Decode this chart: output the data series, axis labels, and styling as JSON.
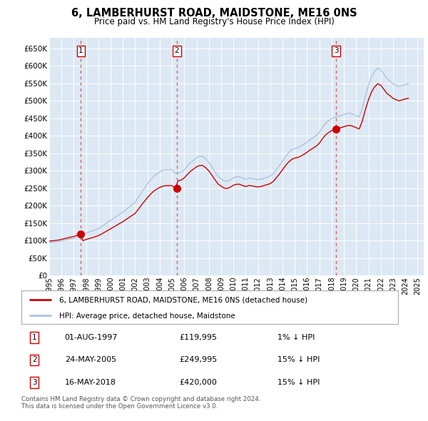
{
  "title": "6, LAMBERHURST ROAD, MAIDSTONE, ME16 0NS",
  "subtitle": "Price paid vs. HM Land Registry's House Price Index (HPI)",
  "ylim": [
    0,
    680000
  ],
  "yticks": [
    0,
    50000,
    100000,
    150000,
    200000,
    250000,
    300000,
    350000,
    400000,
    450000,
    500000,
    550000,
    600000,
    650000
  ],
  "xlim_start": 1995.0,
  "xlim_end": 2025.5,
  "sale_dates": [
    1997.583,
    2005.389,
    2018.37
  ],
  "sale_prices": [
    119995,
    249995,
    420000
  ],
  "sale_labels": [
    "1",
    "2",
    "3"
  ],
  "sale_label_dates": [
    "01-AUG-1997",
    "24-MAY-2005",
    "16-MAY-2018"
  ],
  "sale_label_prices": [
    "£119,995",
    "£249,995",
    "£420,000"
  ],
  "sale_label_hpi": [
    "1% ↓ HPI",
    "15% ↓ HPI",
    "15% ↓ HPI"
  ],
  "hpi_color": "#aac4e0",
  "price_color": "#cc0000",
  "vline_color": "#e06060",
  "background_color": "#dce8f4",
  "legend_label_price": "6, LAMBERHURST ROAD, MAIDSTONE, ME16 0NS (detached house)",
  "legend_label_hpi": "HPI: Average price, detached house, Maidstone",
  "footer": "Contains HM Land Registry data © Crown copyright and database right 2024.\nThis data is licensed under the Open Government Licence v3.0.",
  "hpi_years": [
    1995.0,
    1995.25,
    1995.5,
    1995.75,
    1996.0,
    1996.25,
    1996.5,
    1996.75,
    1997.0,
    1997.25,
    1997.5,
    1997.75,
    1998.0,
    1998.25,
    1998.5,
    1998.75,
    1999.0,
    1999.25,
    1999.5,
    1999.75,
    2000.0,
    2000.25,
    2000.5,
    2000.75,
    2001.0,
    2001.25,
    2001.5,
    2001.75,
    2002.0,
    2002.25,
    2002.5,
    2002.75,
    2003.0,
    2003.25,
    2003.5,
    2003.75,
    2004.0,
    2004.25,
    2004.5,
    2004.75,
    2005.0,
    2005.25,
    2005.5,
    2005.75,
    2006.0,
    2006.25,
    2006.5,
    2006.75,
    2007.0,
    2007.25,
    2007.5,
    2007.75,
    2008.0,
    2008.25,
    2008.5,
    2008.75,
    2009.0,
    2009.25,
    2009.5,
    2009.75,
    2010.0,
    2010.25,
    2010.5,
    2010.75,
    2011.0,
    2011.25,
    2011.5,
    2011.75,
    2012.0,
    2012.25,
    2012.5,
    2012.75,
    2013.0,
    2013.25,
    2013.5,
    2013.75,
    2014.0,
    2014.25,
    2014.5,
    2014.75,
    2015.0,
    2015.25,
    2015.5,
    2015.75,
    2016.0,
    2016.25,
    2016.5,
    2016.75,
    2017.0,
    2017.25,
    2017.5,
    2017.75,
    2018.0,
    2018.25,
    2018.5,
    2018.75,
    2019.0,
    2019.25,
    2019.5,
    2019.75,
    2020.0,
    2020.25,
    2020.5,
    2020.75,
    2021.0,
    2021.25,
    2021.5,
    2021.75,
    2022.0,
    2022.25,
    2022.5,
    2022.75,
    2023.0,
    2023.25,
    2023.5,
    2023.75,
    2024.0,
    2024.25
  ],
  "hpi_values": [
    95000,
    96000,
    97000,
    98000,
    100000,
    102000,
    104000,
    106000,
    108000,
    111000,
    114000,
    118000,
    122000,
    125000,
    128000,
    131000,
    135000,
    140000,
    146000,
    152000,
    158000,
    164000,
    170000,
    176000,
    182000,
    189000,
    196000,
    203000,
    210000,
    223000,
    237000,
    250000,
    263000,
    274000,
    284000,
    291000,
    297000,
    301000,
    303000,
    303000,
    303000,
    294000,
    294000,
    296000,
    303000,
    313000,
    323000,
    330000,
    337000,
    341000,
    341000,
    334000,
    324000,
    311000,
    297000,
    284000,
    277000,
    271000,
    270000,
    274000,
    280000,
    283000,
    283000,
    279000,
    276000,
    279000,
    278000,
    276000,
    275000,
    276000,
    279000,
    282000,
    285000,
    292000,
    303000,
    315000,
    328000,
    341000,
    352000,
    360000,
    364000,
    366000,
    370000,
    376000,
    382000,
    389000,
    395000,
    401000,
    410000,
    424000,
    435000,
    443000,
    449000,
    453000,
    456000,
    458000,
    461000,
    464000,
    465000,
    462000,
    458000,
    454000,
    479000,
    514000,
    544000,
    569000,
    584000,
    594000,
    589000,
    577000,
    564000,
    557000,
    549000,
    544000,
    541000,
    544000,
    547000,
    549000
  ]
}
